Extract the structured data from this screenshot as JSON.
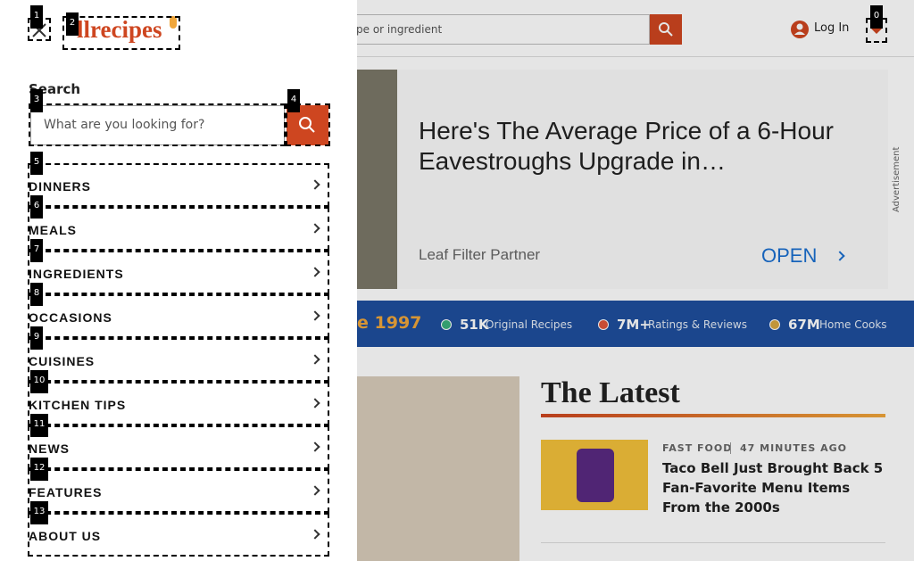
{
  "header": {
    "logo": "llrecipes",
    "search_placeholder": "pe or ingredient",
    "login": "Log In"
  },
  "ad": {
    "headline": "Here's The Average Price of a 6-Hour Eavestroughs Upgrade in…",
    "sponsor": "Leaf Filter Partner",
    "cta": "OPEN",
    "label": "Advertisement"
  },
  "stats": {
    "since": "e 1997",
    "items": [
      {
        "number": "51K",
        "label": "Original Recipes"
      },
      {
        "number": "7M+",
        "label": "Ratings & Reviews"
      },
      {
        "number": "67M",
        "label": "Home Cooks"
      }
    ]
  },
  "latest": {
    "title": "The Latest",
    "article": {
      "tag": "FAST FOOD",
      "time": "47 MINUTES AGO",
      "headline": "Taco Bell Just Brought Back 5 Fan-Favorite Menu Items From the 2000s"
    }
  },
  "menu_panel": {
    "search_label": "Search",
    "search_placeholder": "What are you looking for?",
    "items": [
      "DINNERS",
      "MEALS",
      "INGREDIENTS",
      "OCCASIONS",
      "CUISINES",
      "KITCHEN TIPS",
      "NEWS",
      "FEATURES",
      "ABOUT US"
    ]
  },
  "markers": [
    "0",
    "1",
    "2",
    "3",
    "4",
    "5",
    "6",
    "7",
    "8",
    "9",
    "10",
    "11",
    "12",
    "13"
  ]
}
